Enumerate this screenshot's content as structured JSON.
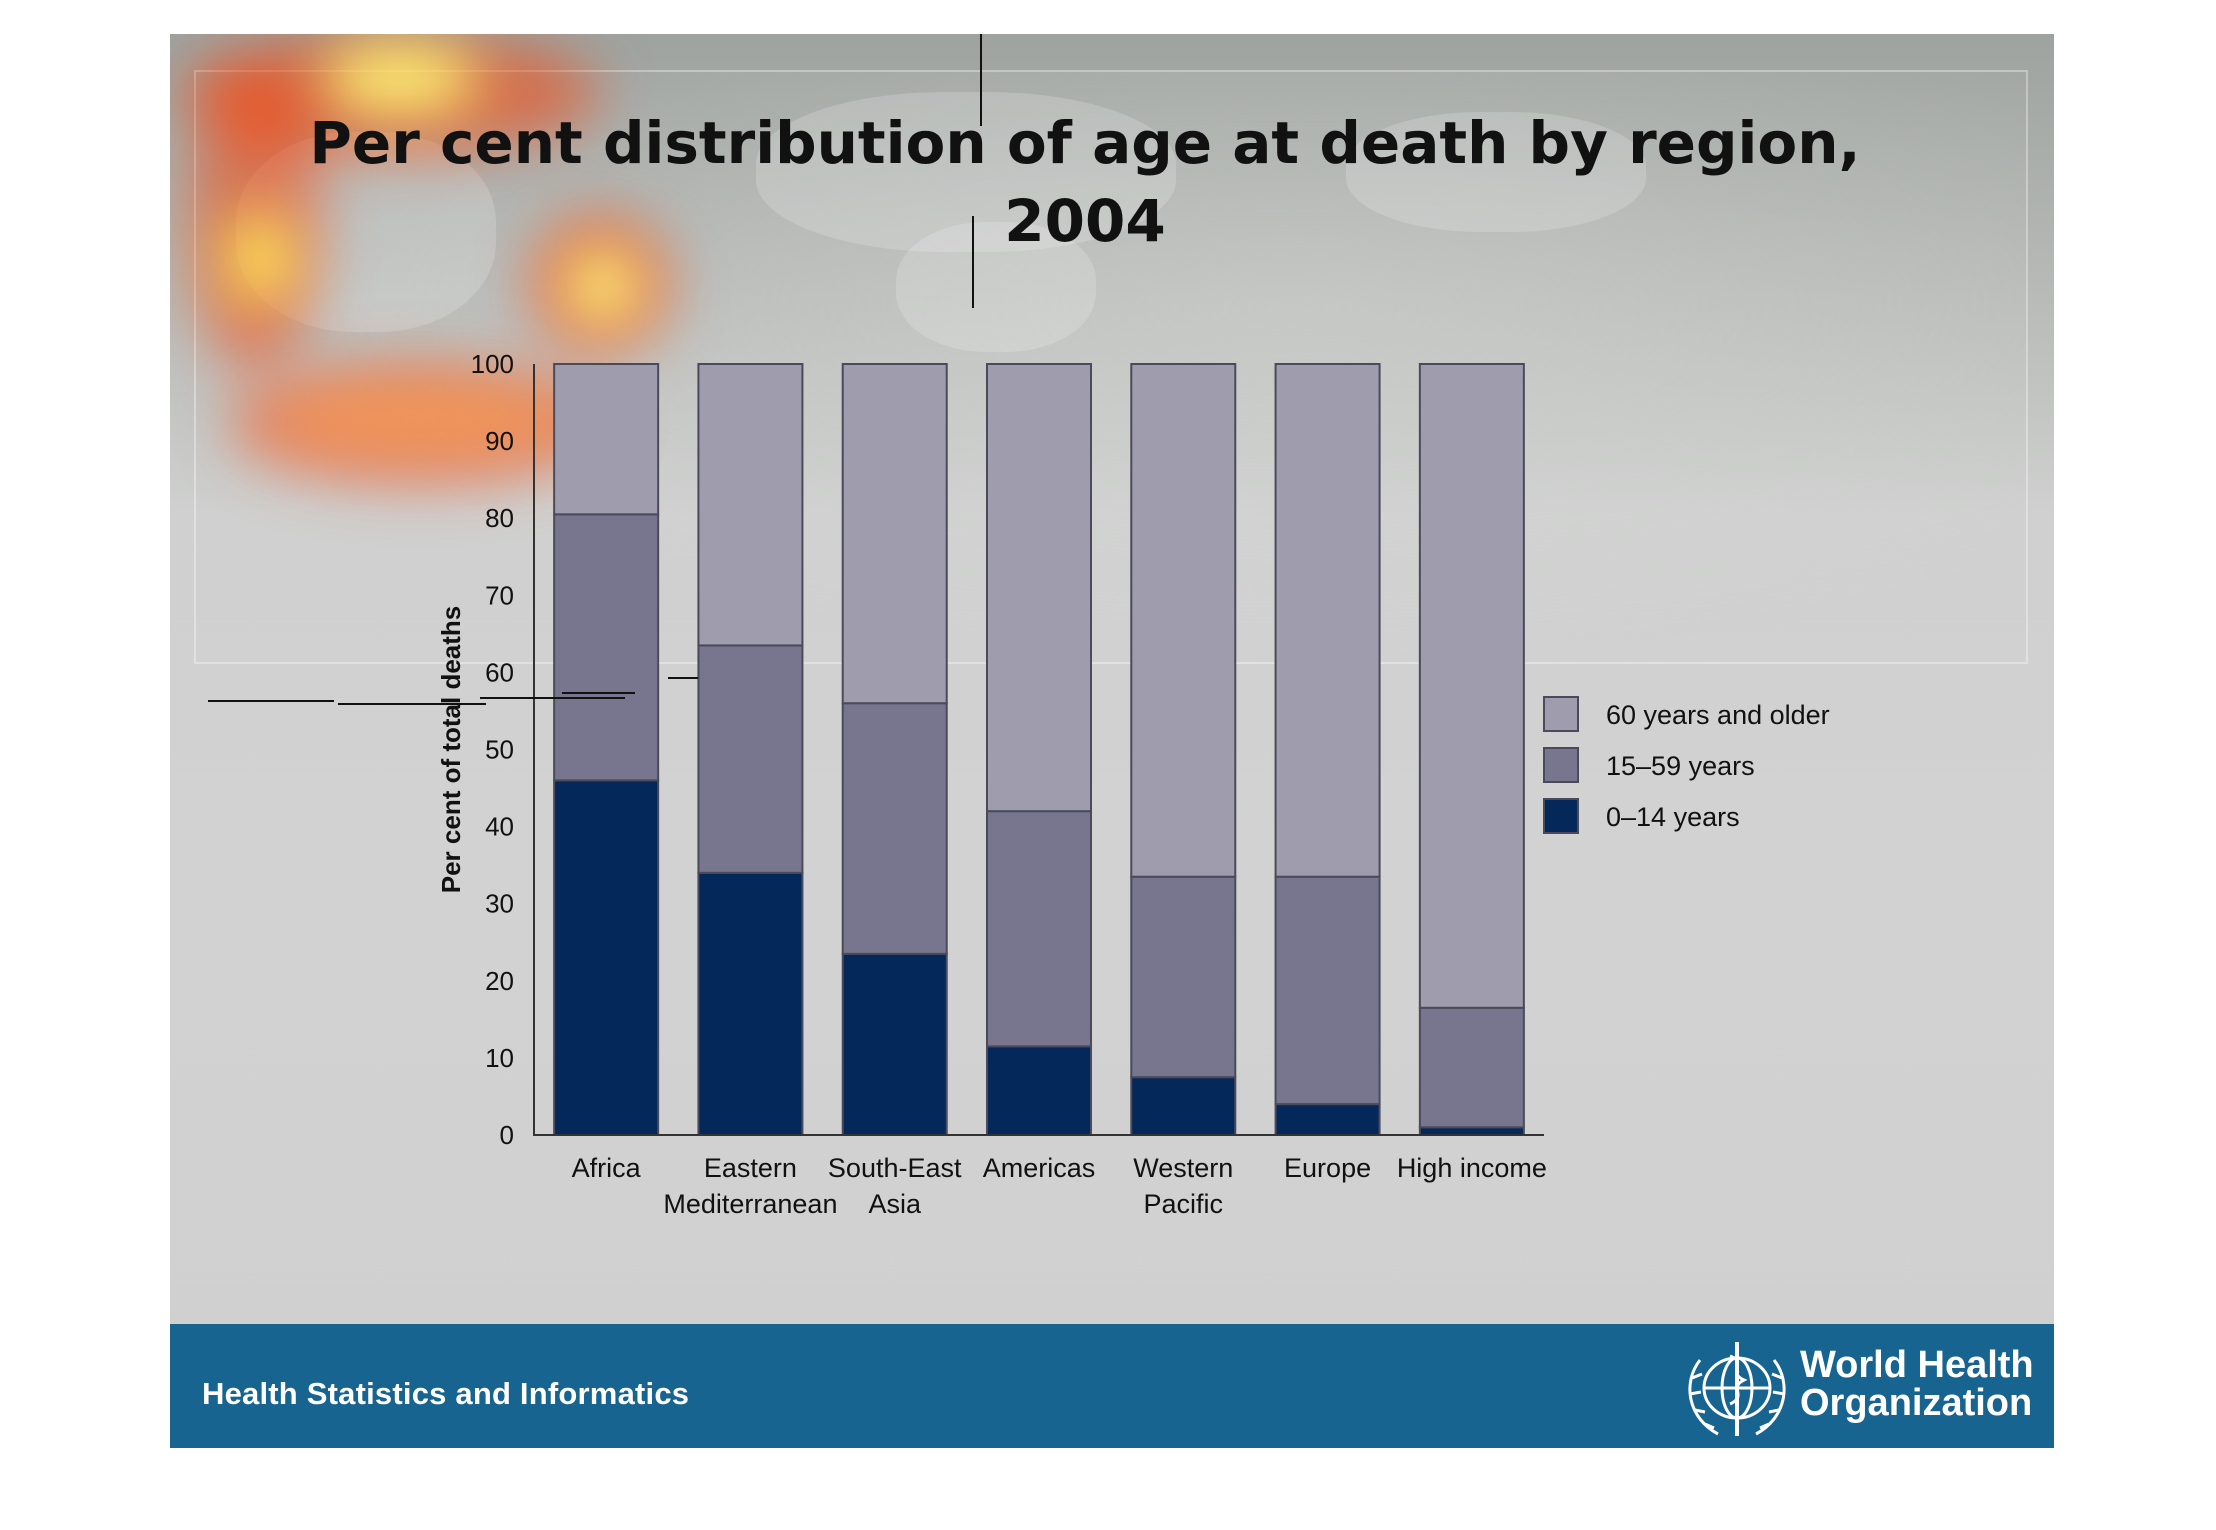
{
  "chart_data": {
    "type": "bar",
    "stacked": true,
    "title": "Per cent distribution of age at death by region, 2004",
    "title_lines": [
      "Per cent distribution of age at death by region,",
      "2004"
    ],
    "ylabel": "Per cent of total deaths",
    "xlabel": "",
    "ylim": [
      0,
      100
    ],
    "yticks": [
      "0",
      "10",
      "20",
      "30",
      "40",
      "50",
      "60",
      "70",
      "80",
      "90",
      "100"
    ],
    "categories": [
      [
        "Africa"
      ],
      [
        "Eastern",
        "Mediterranean"
      ],
      [
        "South-East",
        "Asia"
      ],
      [
        "Americas"
      ],
      [
        "Western",
        "Pacific"
      ],
      [
        "Europe"
      ],
      [
        "High income"
      ]
    ],
    "series": [
      {
        "name": "0–14 years",
        "color": "#05285a",
        "values": [
          46,
          34,
          23.5,
          11.5,
          7.5,
          4,
          1
        ]
      },
      {
        "name": "15–59 years",
        "color": "#78758f",
        "values": [
          34.5,
          29.5,
          32.5,
          30.5,
          26,
          29.5,
          15.5
        ]
      },
      {
        "name": "60 years and older",
        "color": "#9e9cad",
        "values": [
          19.5,
          36.5,
          44,
          58,
          66.5,
          66.5,
          83.5
        ]
      }
    ],
    "legend_order": [
      "60 years and older",
      "15–59 years",
      "0–14 years"
    ],
    "legend_position": "right",
    "grid": false
  },
  "footer": {
    "unit_label": "Health Statistics and Informatics",
    "org_line1": "World Health",
    "org_line2": "Organization",
    "logo_icon": "who-emblem-icon"
  }
}
